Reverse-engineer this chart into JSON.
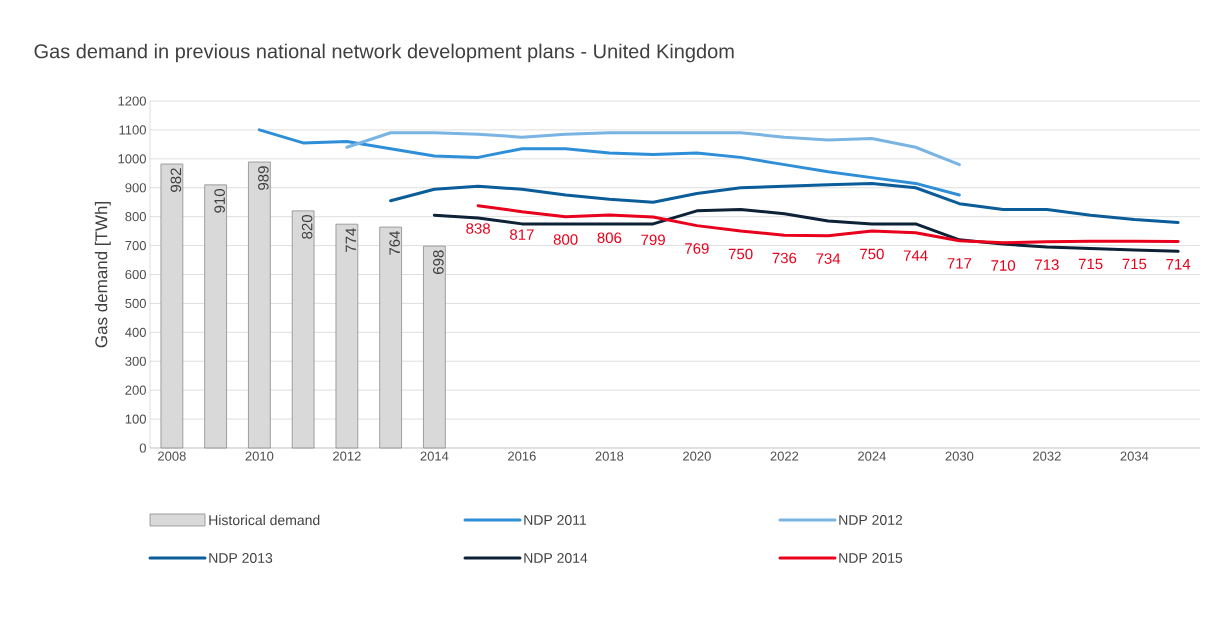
{
  "chart_data": {
    "type": "line",
    "title": "Gas demand in previous national network development plans - United Kingdom",
    "ylabel": "Gas demand [TWh]",
    "categories": [
      "2008",
      null,
      "2010",
      null,
      "2012",
      null,
      "2014",
      null,
      "2016",
      null,
      "2018",
      null,
      "2020",
      null,
      "2022",
      null,
      "2024",
      null,
      "2030",
      null,
      "2032",
      null,
      "2034",
      null
    ],
    "ylim": [
      0,
      1200
    ],
    "yticks": [
      0,
      100,
      200,
      300,
      400,
      500,
      600,
      700,
      800,
      900,
      1000,
      1100,
      1200
    ],
    "grid": "y",
    "legend": "bottom",
    "series": [
      {
        "name": "Historical demand",
        "type": "bar",
        "color": "#d9d9d9",
        "values": [
          982,
          910,
          989,
          820,
          774,
          764,
          698,
          null,
          null,
          null,
          null,
          null,
          null,
          null,
          null,
          null,
          null,
          null,
          null,
          null,
          null,
          null,
          null,
          null
        ],
        "value_labels": [
          "982",
          "910",
          "989",
          "820",
          "774",
          "764",
          "698",
          null,
          null,
          null,
          null,
          null,
          null,
          null,
          null,
          null,
          null,
          null,
          null,
          null,
          null,
          null,
          null,
          null
        ]
      },
      {
        "name": "NDP 2011",
        "color": "#2e8fd8",
        "values": [
          null,
          null,
          1100,
          1055,
          1060,
          1035,
          1010,
          1005,
          1035,
          1035,
          1020,
          1015,
          1020,
          1005,
          980,
          955,
          935,
          915,
          875,
          null,
          null,
          null,
          null,
          null
        ]
      },
      {
        "name": "NDP 2012",
        "color": "#7ab4e3",
        "values": [
          null,
          null,
          null,
          null,
          1040,
          1090,
          1090,
          1085,
          1075,
          1085,
          1090,
          1090,
          1090,
          1090,
          1075,
          1065,
          1070,
          1040,
          980,
          null,
          null,
          null,
          null,
          null
        ]
      },
      {
        "name": "NDP 2013",
        "color": "#0b5d9a",
        "values": [
          null,
          null,
          null,
          null,
          null,
          855,
          895,
          905,
          895,
          875,
          860,
          850,
          880,
          900,
          905,
          910,
          915,
          900,
          845,
          825,
          825,
          805,
          790,
          780
        ]
      },
      {
        "name": "NDP 2014",
        "color": "#0d2137",
        "values": [
          null,
          null,
          null,
          null,
          null,
          null,
          805,
          795,
          775,
          775,
          775,
          775,
          820,
          825,
          810,
          785,
          775,
          775,
          720,
          705,
          695,
          690,
          685,
          680
        ]
      },
      {
        "name": "NDP 2015",
        "color": "#e8001c",
        "values": [
          null,
          null,
          null,
          null,
          null,
          null,
          null,
          838,
          817,
          800,
          806,
          799,
          769,
          750,
          736,
          734,
          750,
          744,
          717,
          710,
          713,
          715,
          715,
          714
        ],
        "value_labels": [
          null,
          null,
          null,
          null,
          null,
          null,
          null,
          "838",
          "817",
          "800",
          "806",
          "799",
          "769",
          "750",
          "736",
          "734",
          "750",
          "744",
          "717",
          "710",
          "713",
          "715",
          "715",
          "714"
        ]
      }
    ]
  }
}
